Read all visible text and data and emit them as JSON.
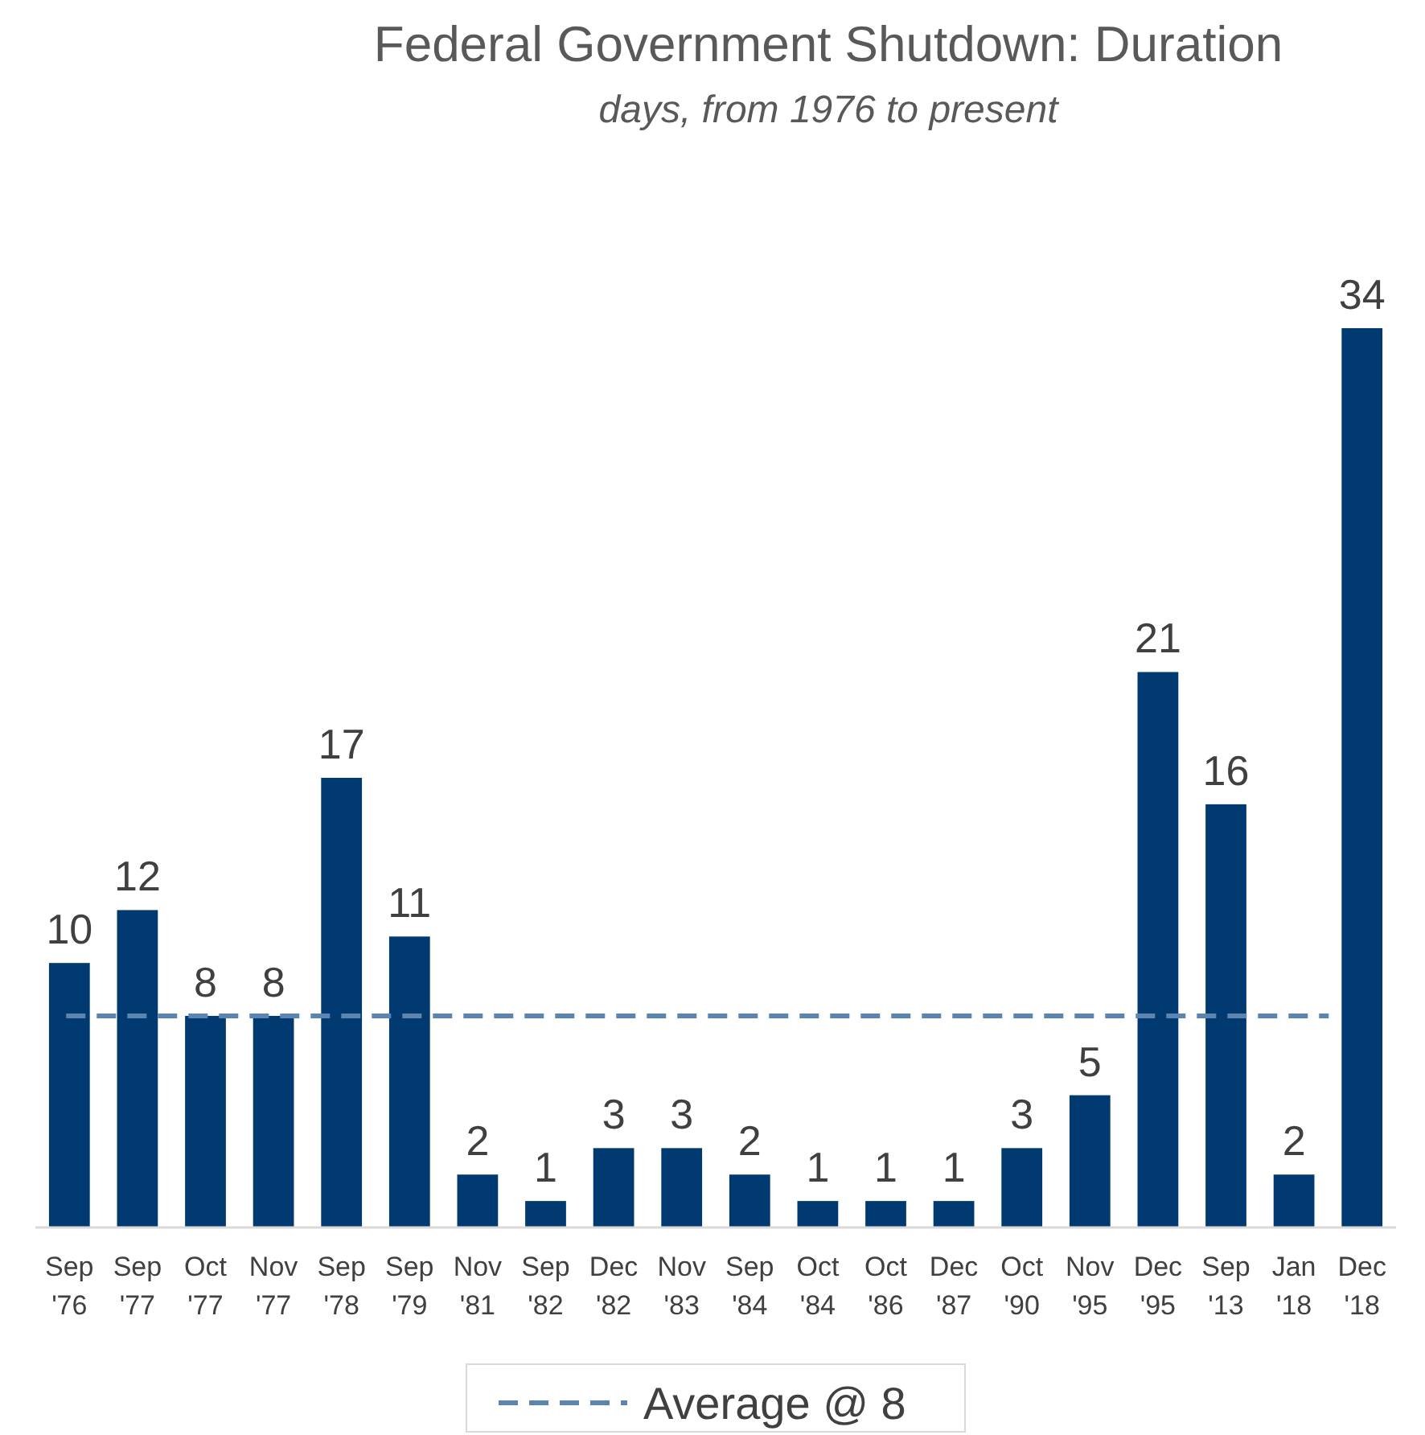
{
  "chart_data": {
    "type": "bar",
    "title": "Federal Government Shutdown: Duration",
    "subtitle": "days, from 1976 to present",
    "categories": [
      "Sep '76",
      "Sep '77",
      "Oct '77",
      "Nov '77",
      "Sep '78",
      "Sep '79",
      "Nov '81",
      "Sep '82",
      "Dec '82",
      "Nov '83",
      "Sep '84",
      "Oct '84",
      "Oct '86",
      "Dec '87",
      "Oct '90",
      "Nov '95",
      "Dec '95",
      "Sep '13",
      "Jan '18",
      "Dec '18"
    ],
    "values": [
      10,
      12,
      8,
      8,
      17,
      11,
      2,
      1,
      3,
      3,
      2,
      1,
      1,
      1,
      3,
      5,
      21,
      16,
      2,
      34
    ],
    "color": "#003a70",
    "data_labels": true,
    "ref_lines": [
      {
        "axis": "y",
        "value": 8,
        "label": "Average @ 8",
        "color": "#5b85b0",
        "line_style": "dashed"
      }
    ],
    "legend": "bottom"
  }
}
